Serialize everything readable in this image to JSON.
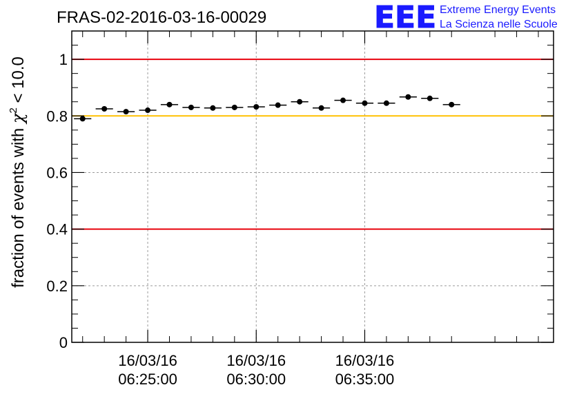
{
  "chart_data": {
    "type": "scatter",
    "title": "FRAS-02-2016-03-16-00029",
    "ylabel_prefix": "fraction of events with ",
    "ylabel_symbol": "χ",
    "ylabel_sup": "2",
    "ylabel_suffix": " < 10.0",
    "ylim": [
      0,
      1.1
    ],
    "yticks": [
      "0",
      "0.2",
      "0.4",
      "0.6",
      "0.8",
      "1"
    ],
    "xticks": [
      {
        "date": "16/03/16",
        "time": "06:25:00",
        "minute": 5
      },
      {
        "date": "16/03/16",
        "time": "06:30:00",
        "minute": 10
      },
      {
        "date": "16/03/16",
        "time": "06:35:00",
        "minute": 15
      }
    ],
    "xlim_minutes": [
      1.5,
      23.7
    ],
    "grid": true,
    "bin_half_width_minutes": 0.4,
    "points": [
      {
        "x": 2.0,
        "y": 0.79
      },
      {
        "x": 3.0,
        "y": 0.825
      },
      {
        "x": 4.0,
        "y": 0.815
      },
      {
        "x": 5.0,
        "y": 0.82
      },
      {
        "x": 6.0,
        "y": 0.84
      },
      {
        "x": 7.0,
        "y": 0.83
      },
      {
        "x": 8.0,
        "y": 0.828
      },
      {
        "x": 9.0,
        "y": 0.83
      },
      {
        "x": 10.0,
        "y": 0.832
      },
      {
        "x": 11.0,
        "y": 0.838
      },
      {
        "x": 12.0,
        "y": 0.85
      },
      {
        "x": 13.0,
        "y": 0.828
      },
      {
        "x": 14.0,
        "y": 0.855
      },
      {
        "x": 15.0,
        "y": 0.845
      },
      {
        "x": 16.0,
        "y": 0.845
      },
      {
        "x": 17.0,
        "y": 0.867
      },
      {
        "x": 18.0,
        "y": 0.862
      },
      {
        "x": 19.0,
        "y": 0.84
      }
    ],
    "reference_lines": [
      {
        "y": 1.0,
        "color": "#e8000b"
      },
      {
        "y": 0.8,
        "color": "#ffc000"
      },
      {
        "y": 0.4,
        "color": "#e8000b"
      }
    ]
  },
  "logo": {
    "mark": "EEE",
    "line1": "Extreme Energy Events",
    "line2": "La Scienza nelle Scuole",
    "color": "#1a1aff"
  }
}
